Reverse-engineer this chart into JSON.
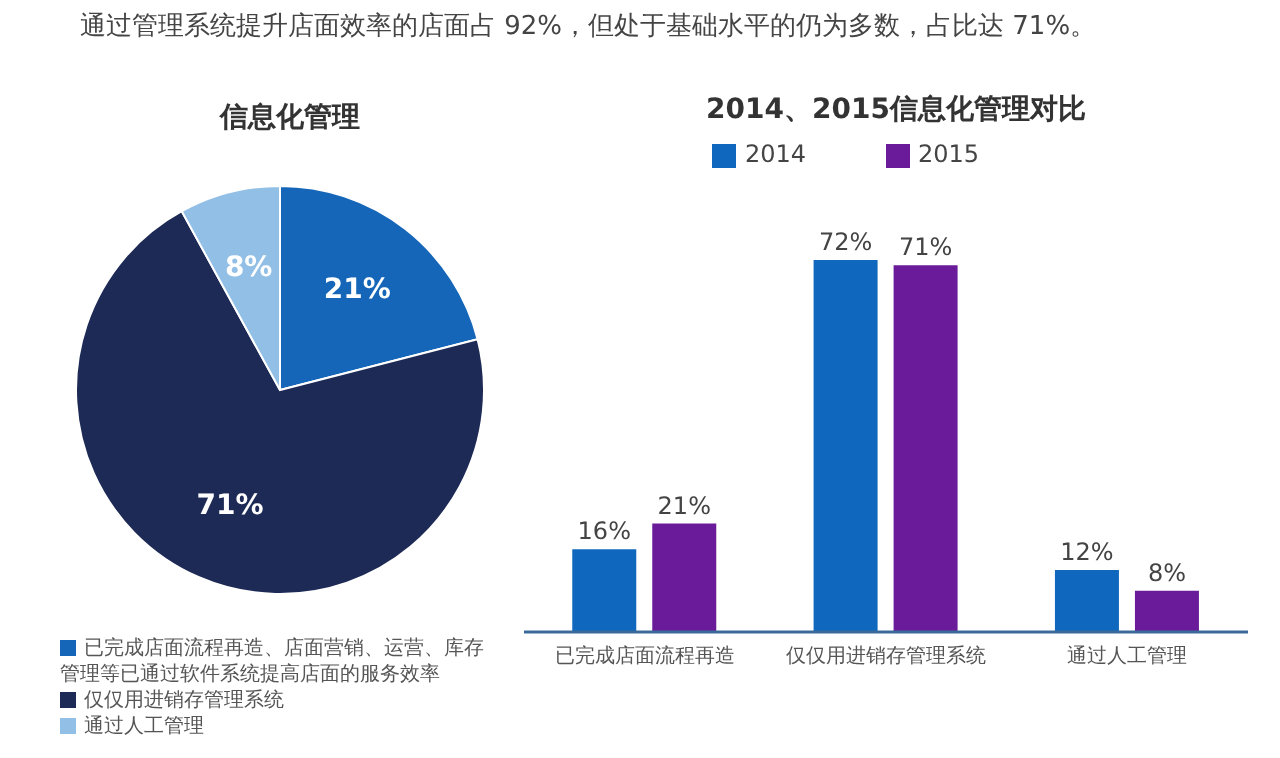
{
  "chart_data": [
    {
      "type": "pie",
      "title": "信息化管理",
      "annotations": [
        "通过管理系统提升店面效率的店面占 92%，但处于基础水平的仍为多数，占比达 71%。"
      ],
      "categories": [
        "已完成店面流程再造、店面营销、运营、库存管理等已通过软件系统提高店面的服务效率",
        "仅仅用进销存管理系统",
        "通过人工管理"
      ],
      "values": [
        21,
        71,
        8
      ],
      "colors": [
        "#1565b8",
        "#1c2a55",
        "#92bfe5"
      ],
      "value_labels": [
        "21%",
        "71%",
        "8%"
      ],
      "legend": "bottom"
    },
    {
      "type": "bar",
      "title": "2014、2015信息化管理对比",
      "categories": [
        "已完成店面流程再造",
        "仅仅用进销存管理系统",
        "通过人工管理"
      ],
      "series": [
        {
          "name": "2014",
          "color": "#0f68bd",
          "values": [
            16,
            72,
            12
          ],
          "value_labels": [
            "16%",
            "72%",
            "12%"
          ]
        },
        {
          "name": "2015",
          "color": "#6a1b9a",
          "values": [
            21,
            71,
            8
          ],
          "value_labels": [
            "21%",
            "71%",
            "8%"
          ]
        }
      ],
      "legend": "top",
      "tick_labels": "x"
    }
  ]
}
